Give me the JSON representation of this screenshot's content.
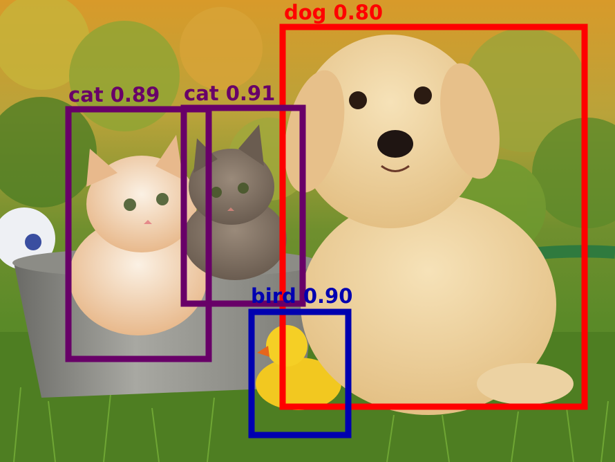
{
  "image": {
    "subject": "photo",
    "objects": [
      "dog",
      "cat",
      "cat",
      "bird"
    ]
  },
  "detections": [
    {
      "id": "dog",
      "label": "dog 0.80",
      "class": "dog",
      "score": 0.8,
      "color": "#ff0000"
    },
    {
      "id": "cat-left",
      "label": "cat 0.89",
      "class": "cat",
      "score": 0.89,
      "color": "#680068"
    },
    {
      "id": "cat-right",
      "label": "cat 0.91",
      "class": "cat",
      "score": 0.91,
      "color": "#680068"
    },
    {
      "id": "bird",
      "label": "bird 0.90",
      "class": "bird",
      "score": 0.9,
      "color": "#0000b0"
    }
  ]
}
